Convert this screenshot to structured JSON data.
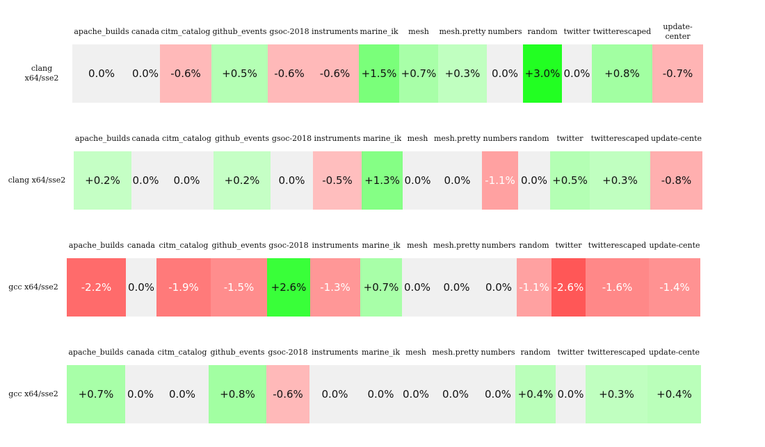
{
  "chart_data": {
    "type": "heatmap",
    "colors": {
      "neutral": "#f0f0f0",
      "positive": "#22ff22",
      "negative": "#ff4444"
    },
    "panels": [
      {
        "row_label": "clang\nx64/sse2",
        "columns": [
          "apache_builds",
          "canada",
          "citm_catalog",
          "github_events",
          "gsoc-2018",
          "instruments",
          "marine_ik",
          "mesh",
          "mesh.pretty",
          "numbers",
          "random",
          "twitter",
          "twitterescaped",
          "update-\ncenter"
        ],
        "values": [
          0.0,
          0.0,
          -0.6,
          0.5,
          -0.6,
          -0.6,
          1.5,
          0.7,
          0.3,
          0.0,
          3.0,
          0.0,
          0.8,
          -0.7
        ],
        "labels": [
          "0.0%",
          "0.0%",
          "-0.6%",
          "+0.5%",
          "-0.6%",
          "-0.6%",
          "+1.5%",
          "+0.7%",
          "+0.3%",
          "0.0%",
          "+3.0%",
          "0.0%",
          "+0.8%",
          "-0.7%"
        ]
      },
      {
        "row_label": "clang x64/sse2",
        "columns": [
          "apache_builds",
          "canada",
          "citm_catalog",
          "github_events",
          "gsoc-2018",
          "instruments",
          "marine_ik",
          "mesh",
          "mesh.pretty",
          "numbers",
          "random",
          "twitter",
          "twitterescaped",
          "update-cente"
        ],
        "values": [
          0.2,
          0.0,
          0.0,
          0.2,
          0.0,
          -0.5,
          1.3,
          0.0,
          0.0,
          -1.1,
          0.0,
          0.5,
          0.3,
          -0.8
        ],
        "labels": [
          "+0.2%",
          "0.0%",
          "0.0%",
          "+0.2%",
          "0.0%",
          "-0.5%",
          "+1.3%",
          "0.0%",
          "0.0%",
          "-1.1%",
          "0.0%",
          "+0.5%",
          "+0.3%",
          "-0.8%"
        ]
      },
      {
        "row_label": "gcc x64/sse2",
        "columns": [
          "apache_builds",
          "canada",
          "citm_catalog",
          "github_events",
          "gsoc-2018",
          "instruments",
          "marine_ik",
          "mesh",
          "mesh.pretty",
          "numbers",
          "random",
          "twitter",
          "twitterescaped",
          "update-cente"
        ],
        "values": [
          -2.2,
          0.0,
          -1.9,
          -1.5,
          2.6,
          -1.3,
          0.7,
          0.0,
          0.0,
          0.0,
          -1.1,
          -2.6,
          -1.6,
          -1.4
        ],
        "labels": [
          "-2.2%",
          "0.0%",
          "-1.9%",
          "-1.5%",
          "+2.6%",
          "-1.3%",
          "+0.7%",
          "0.0%",
          "0.0%",
          "0.0%",
          "-1.1%",
          "-2.6%",
          "-1.6%",
          "-1.4%"
        ]
      },
      {
        "row_label": "gcc x64/sse2",
        "columns": [
          "apache_builds",
          "canada",
          "citm_catalog",
          "github_events",
          "gsoc-2018",
          "instruments",
          "marine_ik",
          "mesh",
          "mesh.pretty",
          "numbers",
          "random",
          "twitter",
          "twitterescaped",
          "update-cente"
        ],
        "values": [
          0.7,
          0.0,
          0.0,
          0.8,
          -0.6,
          0.0,
          0.0,
          0.0,
          0.0,
          0.0,
          0.4,
          0.0,
          0.3,
          0.4
        ],
        "labels": [
          "+0.7%",
          "0.0%",
          "0.0%",
          "+0.8%",
          "-0.6%",
          "0.0%",
          "0.0%",
          "0.0%",
          "0.0%",
          "0.0%",
          "+0.4%",
          "0.0%",
          "+0.3%",
          "+0.4%"
        ]
      }
    ]
  }
}
